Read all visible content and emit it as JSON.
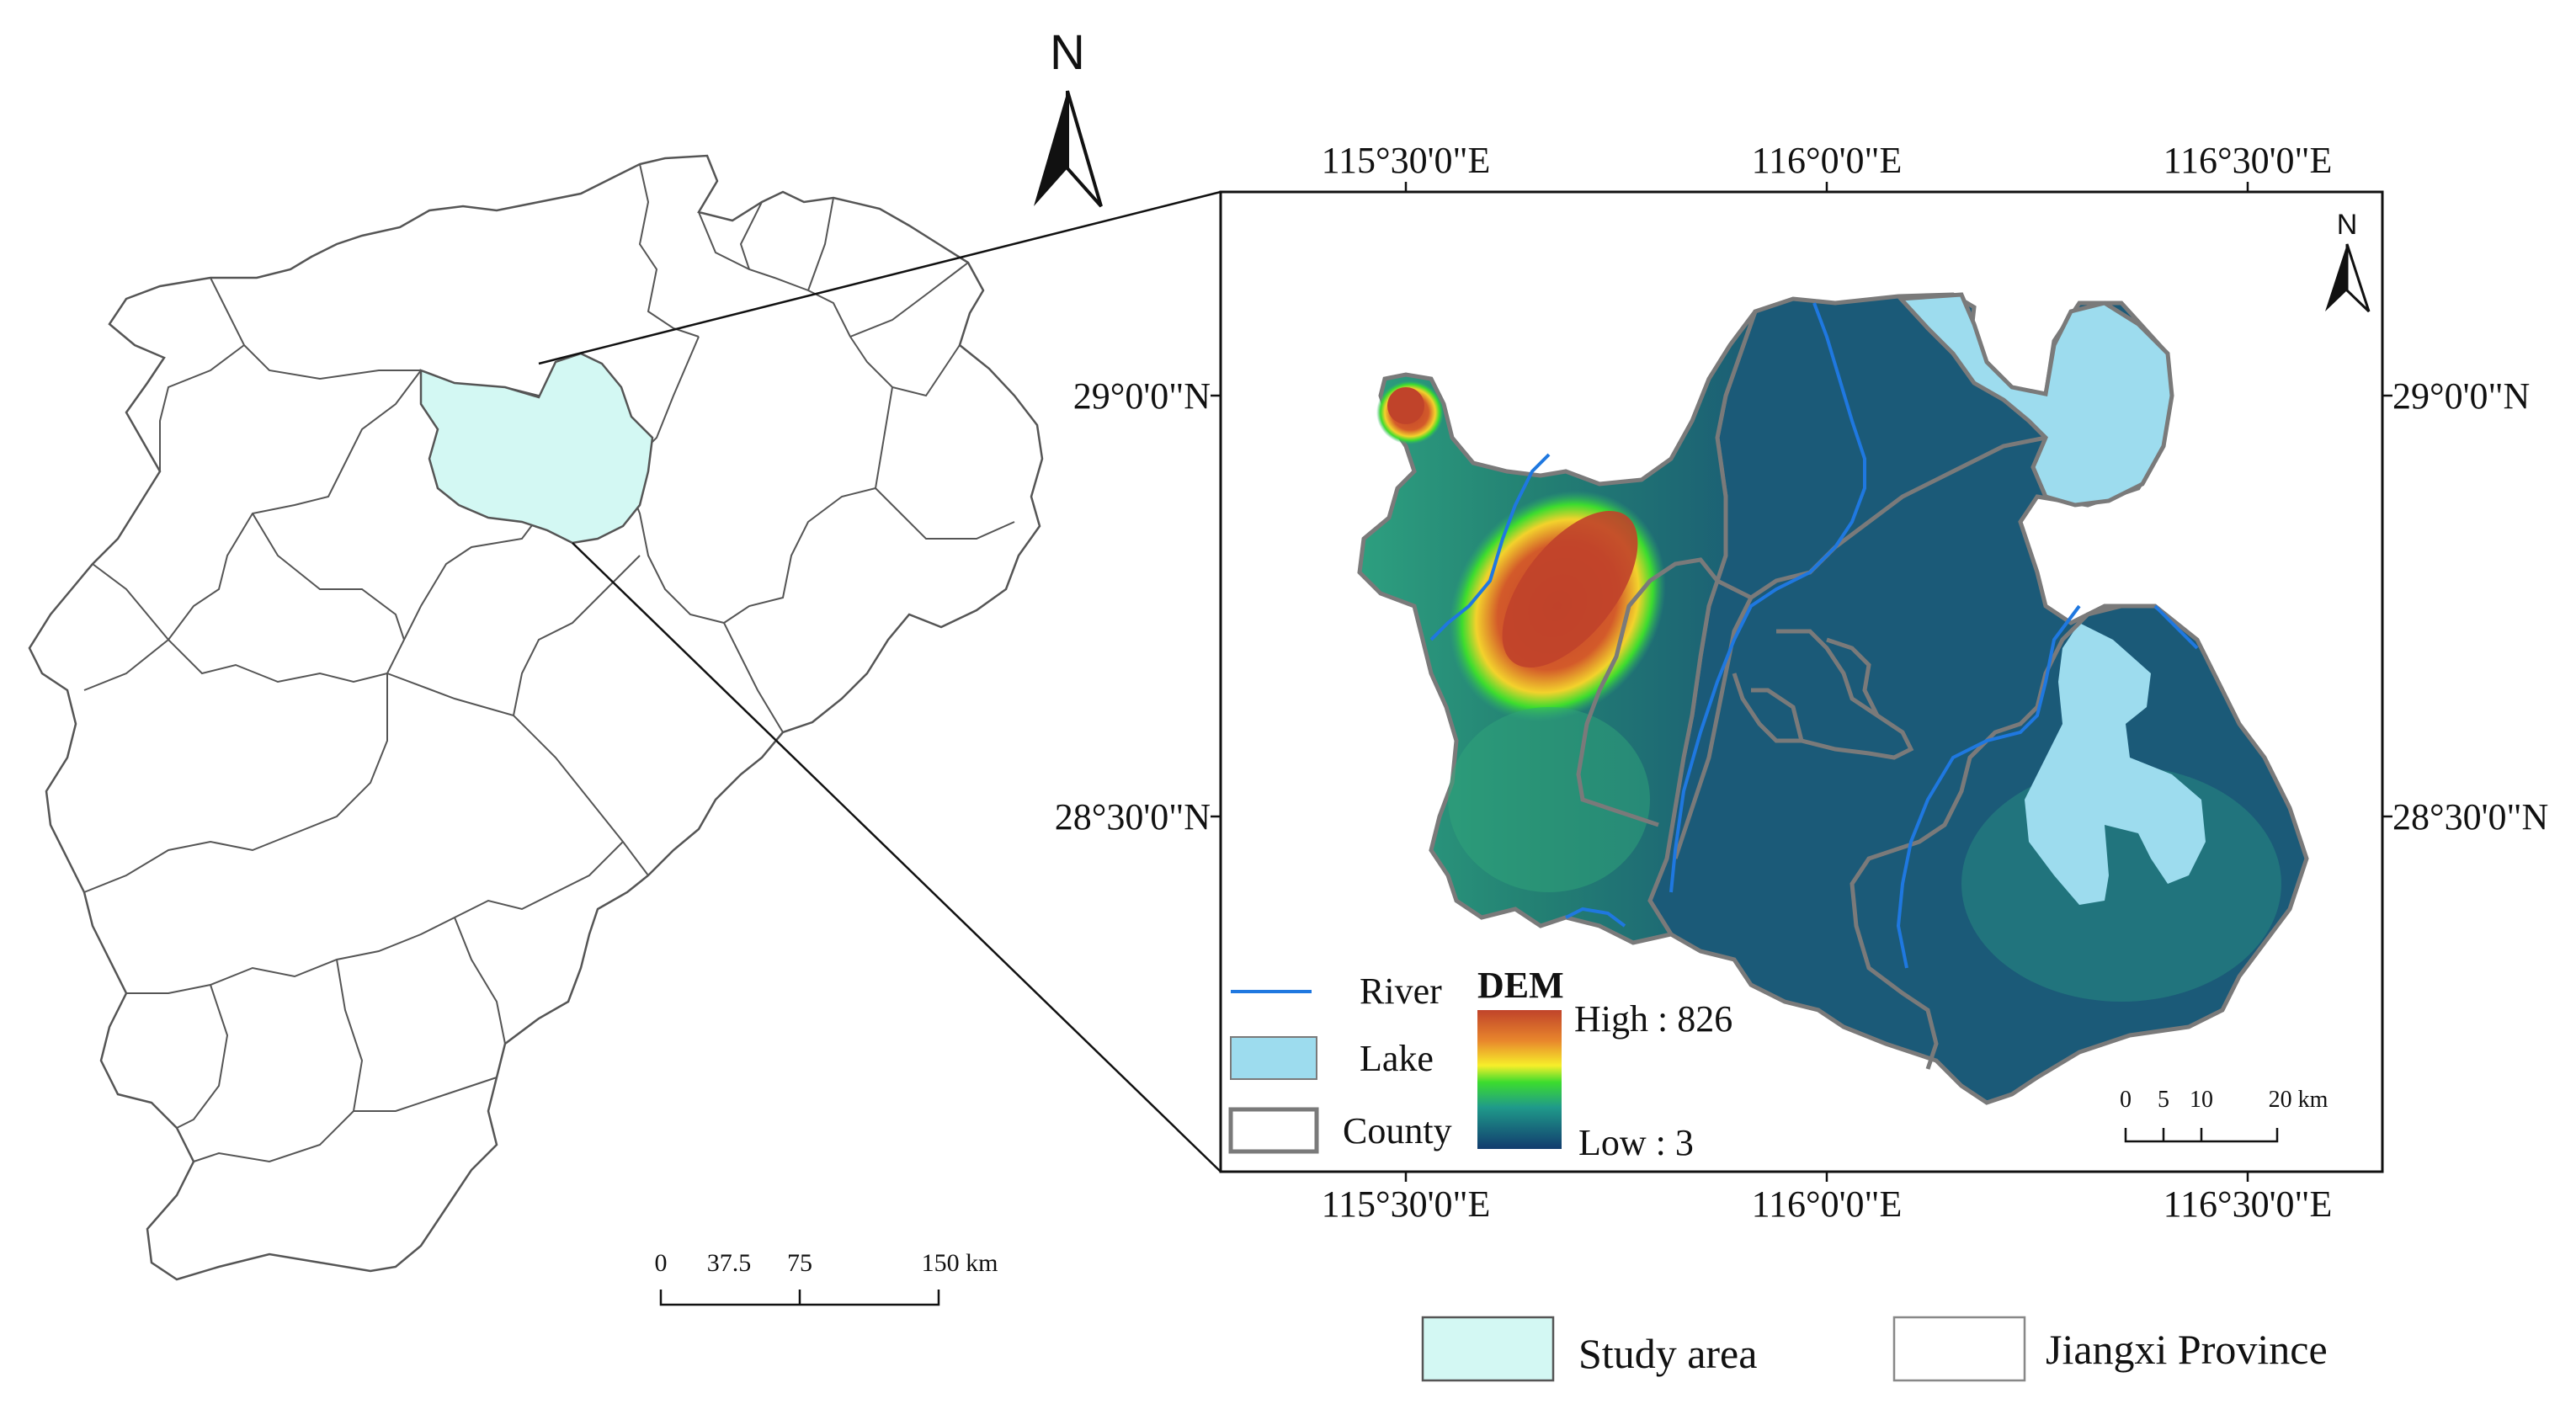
{
  "map": {
    "north_label_main": "N",
    "north_label_inset": "N",
    "coords": {
      "top": [
        "115°30'0\"E",
        "116°0'0\"E",
        "116°30'0\"E"
      ],
      "bottom": [
        "115°30'0\"E",
        "116°0'0\"E",
        "116°30'0\"E"
      ],
      "left": [
        "29°0'0\"N",
        "28°30'0\"N"
      ],
      "right": [
        "29°0'0\"N",
        "28°30'0\"N"
      ]
    },
    "legend_inset": {
      "river": "River",
      "lake": "Lake",
      "county": "County",
      "dem_title": "DEM",
      "dem_high": "High : 826",
      "dem_low": "Low : 3"
    },
    "scale_inset": {
      "ticks": [
        "0",
        "5",
        "10",
        "20 km"
      ]
    },
    "scale_main": {
      "ticks": [
        "0",
        "37.5",
        "75",
        "150 km"
      ]
    },
    "legend_main": {
      "study_area": "Study area",
      "province": "Jiangxi Province"
    },
    "colors": {
      "study_area": "#d3f8f3",
      "lake": "#9ddcee",
      "river": "#1f78e0",
      "county_line": "#808080",
      "dem_high": "#c0432a",
      "dem_low": "#123c6e"
    }
  }
}
